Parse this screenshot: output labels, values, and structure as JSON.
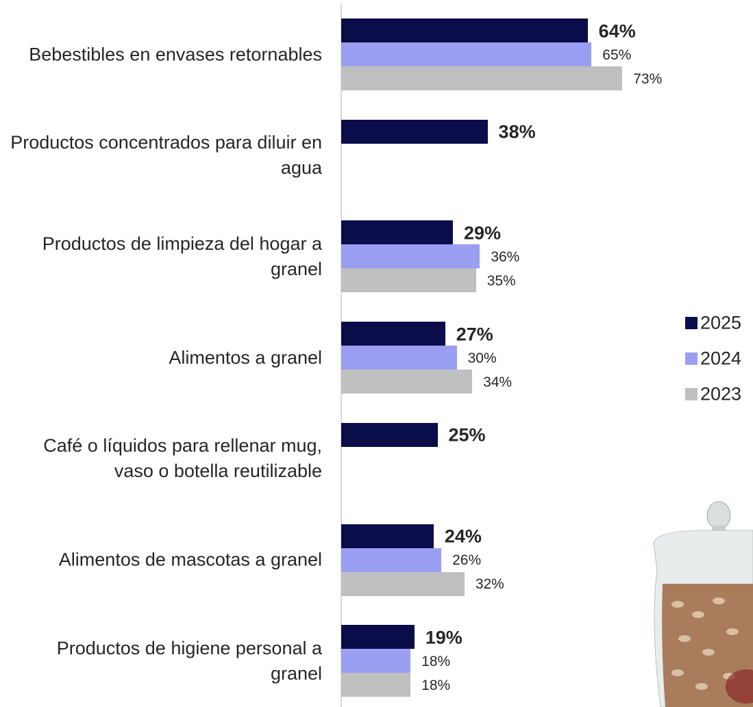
{
  "chart_data": {
    "type": "bar",
    "orientation": "horizontal",
    "categories": [
      "Bebestibles en envases retornables",
      "Productos concentrados para diluir en agua",
      "Productos de limpieza del hogar a granel",
      "Alimentos a granel",
      "Café o líquidos para rellenar mug, vaso o botella reutilizable",
      "Alimentos de mascotas a granel",
      "Productos de higiene personal a granel"
    ],
    "series": [
      {
        "name": "2025",
        "color": "#0b0c4a",
        "values": [
          64,
          38,
          29,
          27,
          25,
          24,
          19
        ],
        "value_labels": [
          "64%",
          "38%",
          "29%",
          "27%",
          "25%",
          "24%",
          "19%"
        ]
      },
      {
        "name": "2024",
        "color": "#9b9ff2",
        "values": [
          65,
          null,
          36,
          30,
          null,
          26,
          18
        ],
        "value_labels": [
          "65%",
          null,
          "36%",
          "30%",
          null,
          "26%",
          "18%"
        ]
      },
      {
        "name": "2023",
        "color": "#bfbfbf",
        "values": [
          73,
          null,
          35,
          34,
          null,
          32,
          18
        ],
        "value_labels": [
          "73%",
          null,
          "35%",
          "34%",
          null,
          "32%",
          "18%"
        ]
      }
    ],
    "xlim": [
      0,
      100
    ],
    "legend": "right"
  }
}
